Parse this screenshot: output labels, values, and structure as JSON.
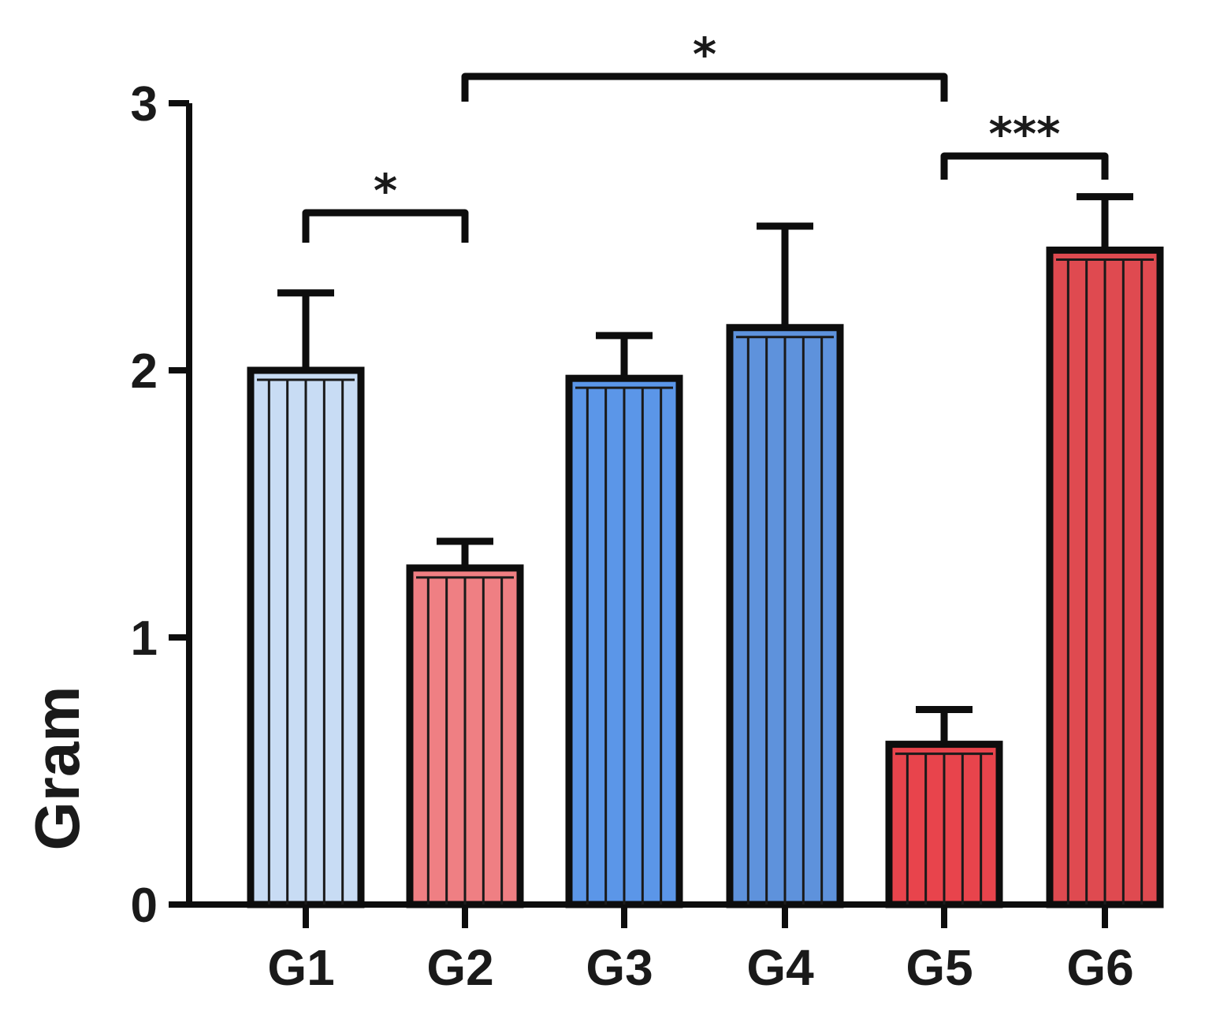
{
  "chart_data": {
    "type": "bar",
    "title": "",
    "xlabel": "",
    "ylabel": "Gram",
    "ylim": [
      0,
      3
    ],
    "yticks": [
      "0",
      "1",
      "2",
      "3"
    ],
    "grid": false,
    "categories": [
      "G1",
      "G2",
      "G3",
      "G4",
      "G5",
      "G6"
    ],
    "values": [
      2.0,
      1.26,
      1.97,
      2.16,
      0.6,
      2.45
    ],
    "errors": [
      0.29,
      0.1,
      0.16,
      0.38,
      0.13,
      0.2
    ],
    "colors": [
      "#c8dcf4",
      "#ef7f83",
      "#5b96e8",
      "#5e92dc",
      "#e8444c",
      "#df4a50"
    ],
    "significance": [
      {
        "from": "G1",
        "to": "G2",
        "label": "*"
      },
      {
        "from": "G2",
        "to": "G5",
        "label": "*"
      },
      {
        "from": "G5",
        "to": "G6",
        "label": "***"
      }
    ]
  }
}
